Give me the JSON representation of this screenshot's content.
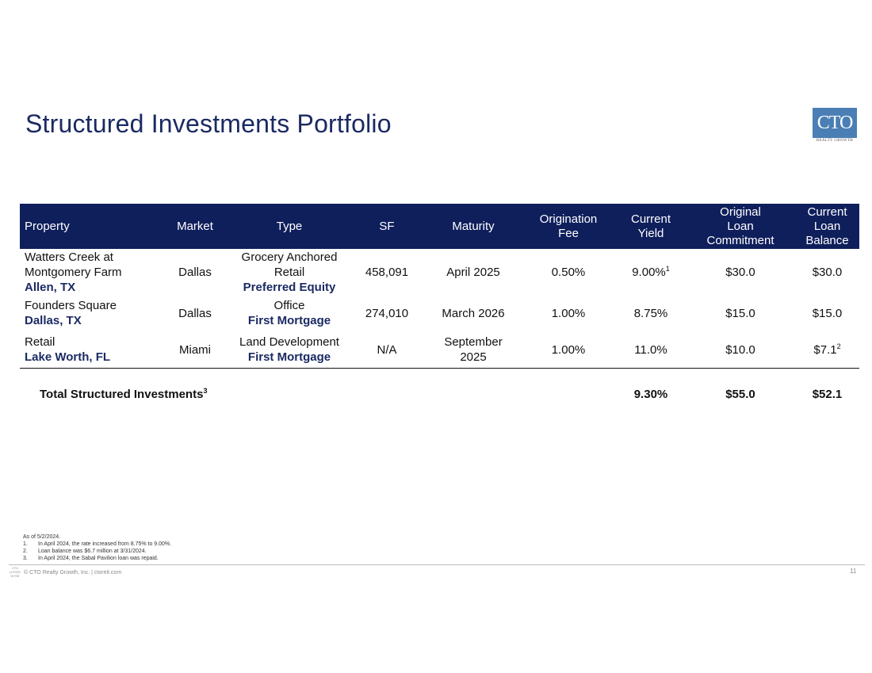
{
  "title": "Structured Investments Portfolio",
  "logo": {
    "text": "CTO",
    "sub": "REALTY GROWTH"
  },
  "table": {
    "headers": {
      "property": "Property",
      "market": "Market",
      "type": "Type",
      "sf": "SF",
      "maturity": "Maturity",
      "origination_fee": [
        "Origination",
        "Fee"
      ],
      "current_yield": [
        "Current",
        "Yield"
      ],
      "original_commitment": [
        "Original",
        "Loan",
        "Commitment"
      ],
      "current_balance": [
        "Current",
        "Loan Balance"
      ]
    },
    "rows": [
      {
        "property": [
          "Watters Creek at",
          "Montgomery Farm"
        ],
        "location": "Allen, TX",
        "market": "Dallas",
        "type": [
          "Grocery Anchored",
          "Retail"
        ],
        "investment": "Preferred Equity",
        "sf": "458,091",
        "maturity": [
          "April 2025"
        ],
        "fee": "0.50%",
        "yield": "9.00%",
        "yield_note": "1",
        "commitment": "$30.0",
        "balance": "$30.0",
        "balance_note": ""
      },
      {
        "property": [
          "Founders Square"
        ],
        "location": "Dallas, TX",
        "market": "Dallas",
        "type": [
          "Office"
        ],
        "investment": "First Mortgage",
        "sf": "274,010",
        "maturity": [
          "March 2026"
        ],
        "fee": "1.00%",
        "yield": "8.75%",
        "yield_note": "",
        "commitment": "$15.0",
        "balance": "$15.0",
        "balance_note": ""
      },
      {
        "property": [
          "Retail"
        ],
        "location": "Lake Worth, FL",
        "market": "Miami",
        "type": [
          "Land Development"
        ],
        "investment": "First Mortgage",
        "sf": "N/A",
        "maturity": [
          "September",
          "2025"
        ],
        "fee": "1.00%",
        "yield": "11.0%",
        "yield_note": "",
        "commitment": "$10.0",
        "balance": "$7.1",
        "balance_note": "2"
      }
    ],
    "total": {
      "label": "Total Structured Investments",
      "label_note": "3",
      "yield": "9.30%",
      "commitment": "$55.0",
      "balance": "$52.1"
    }
  },
  "footnotes": {
    "as_of": "As of 5/2/2024.",
    "items": [
      {
        "num": "1.",
        "text": "In April 2024, the rate increased from 8.75% to 9.00%."
      },
      {
        "num": "2.",
        "text": "Loan balance was $6.7 million at 3/31/2024."
      },
      {
        "num": "3.",
        "text": "In April 2024, the Sabal Pavilion loan was repaid."
      }
    ]
  },
  "footer": {
    "text": "© CTO Realty Growth, Inc. | ctoreit.com",
    "logo_lines": [
      "CTO",
      "LISTED",
      "NYSE"
    ],
    "page_number": "11"
  }
}
